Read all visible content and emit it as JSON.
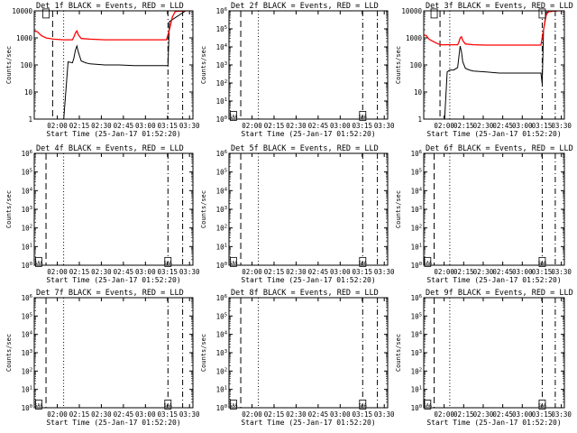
{
  "figure": {
    "xlabel": "Start Time (25-Jan-17 01:52:20)",
    "ylabel": "Counts/sec",
    "xticks": [
      "02:00",
      "02:15",
      "02:30",
      "02:45",
      "03:00",
      "03:15",
      "03:30"
    ],
    "colors": {
      "events": "#000000",
      "lld": "#ff0000",
      "axes": "#000000"
    }
  },
  "chart_data": [
    {
      "type": "line",
      "title": "Det 1f BLACK = Events, RED = LLD",
      "xlim_minutes_after_start": [
        -8,
        100
      ],
      "yscale": "log",
      "ylim": [
        1,
        10000
      ],
      "yticks": [
        "1",
        "10",
        "100",
        "1000",
        "10000"
      ],
      "vlines": [
        {
          "minutes": 4.5,
          "style": "dashed"
        },
        {
          "minutes": 12,
          "style": "dotted"
        },
        {
          "minutes": 83,
          "style": "dashdot"
        },
        {
          "minutes": 93,
          "style": "dashdot"
        }
      ],
      "box_markers": [
        {
          "minutes": 0,
          "y": 8000,
          "label": ""
        }
      ],
      "series": [
        {
          "role": "events",
          "x": [
            -8,
            12,
            15,
            18,
            19,
            20,
            21,
            22,
            24,
            27,
            30,
            40,
            50,
            60,
            70,
            80,
            83,
            84,
            95,
            100
          ],
          "y": [
            0.9,
            0.9,
            130,
            120,
            180,
            350,
            500,
            300,
            140,
            120,
            110,
            100,
            100,
            95,
            95,
            95,
            95,
            4000,
            10000,
            10000
          ]
        },
        {
          "role": "lld",
          "x": [
            -8,
            -6,
            -5,
            -3,
            0,
            5,
            12,
            18,
            19,
            20,
            21,
            22,
            24,
            30,
            40,
            50,
            60,
            70,
            80,
            82,
            84,
            86,
            88,
            95,
            100
          ],
          "y": [
            1800,
            1700,
            1500,
            1200,
            1000,
            900,
            850,
            850,
            1100,
            1500,
            1800,
            1300,
            950,
            900,
            850,
            850,
            850,
            850,
            850,
            850,
            2000,
            6000,
            9500,
            10000,
            10000
          ]
        }
      ]
    },
    {
      "type": "line",
      "title": "Det 2f BLACK = Events, RED = LLD",
      "xlim_minutes_after_start": [
        -8,
        100
      ],
      "yscale": "log",
      "ylim": [
        1,
        1000000
      ],
      "yticks": [
        "10^0",
        "10^1",
        "10^2",
        "10^3",
        "10^4",
        "10^5",
        "10^6"
      ],
      "vlines": [
        {
          "minutes": 0,
          "style": "dashed"
        },
        {
          "minutes": 12,
          "style": "dotted"
        },
        {
          "minutes": 83,
          "style": "dashdot"
        },
        {
          "minutes": 93,
          "style": "dashdot"
        }
      ],
      "box_markers": [
        {
          "minutes": -5,
          "y": 1.5,
          "label": "SAA"
        },
        {
          "minutes": 83,
          "y": 1.5,
          "label": "SAA"
        }
      ],
      "series": []
    },
    {
      "type": "line",
      "title": "Det 3f BLACK = Events, RED = LLD",
      "xlim_minutes_after_start": [
        -8,
        100
      ],
      "yscale": "log",
      "ylim": [
        1,
        10000
      ],
      "yticks": [
        "1",
        "10",
        "100",
        "1000",
        "10000"
      ],
      "vlines": [
        {
          "minutes": 4.5,
          "style": "dashed"
        },
        {
          "minutes": 12,
          "style": "dotted"
        },
        {
          "minutes": 83,
          "style": "dashdot"
        },
        {
          "minutes": 93,
          "style": "dashdot"
        }
      ],
      "box_markers": [
        {
          "minutes": 0,
          "y": 8000,
          "label": ""
        },
        {
          "minutes": 83,
          "y": 8000,
          "label": ""
        }
      ],
      "series": [
        {
          "role": "events",
          "x": [
            -8,
            8,
            10,
            12,
            15,
            18,
            19,
            20,
            21,
            22,
            24,
            27,
            30,
            40,
            50,
            60,
            70,
            80,
            82,
            83,
            84,
            86,
            95,
            100
          ],
          "y": [
            0.9,
            0.9,
            55,
            65,
            65,
            80,
            200,
            500,
            300,
            130,
            75,
            65,
            60,
            55,
            50,
            50,
            50,
            50,
            50,
            20,
            2000,
            9000,
            10000,
            10000
          ]
        },
        {
          "role": "lld",
          "x": [
            -8,
            -6,
            -4,
            0,
            3,
            5,
            8,
            12,
            18,
            19,
            20,
            21,
            22,
            24,
            30,
            40,
            50,
            60,
            70,
            80,
            82,
            84,
            86,
            88,
            95,
            100
          ],
          "y": [
            1300,
            1200,
            900,
            700,
            600,
            560,
            560,
            560,
            560,
            700,
            1000,
            1100,
            800,
            600,
            560,
            540,
            540,
            540,
            540,
            540,
            540,
            2000,
            7000,
            9500,
            10000,
            10000
          ]
        }
      ]
    },
    {
      "type": "line",
      "title": "Det 4f BLACK = Events, RED = LLD",
      "xlim_minutes_after_start": [
        -8,
        100
      ],
      "yscale": "log",
      "ylim": [
        1,
        1000000
      ],
      "yticks": [
        "10^0",
        "10^1",
        "10^2",
        "10^3",
        "10^4",
        "10^5",
        "10^6"
      ],
      "vlines": [
        {
          "minutes": 0,
          "style": "dashed"
        },
        {
          "minutes": 12,
          "style": "dotted"
        },
        {
          "minutes": 83,
          "style": "dashdot"
        },
        {
          "minutes": 93,
          "style": "dashdot"
        }
      ],
      "box_markers": [
        {
          "minutes": -5,
          "y": 1.5,
          "label": "SAA"
        },
        {
          "minutes": 83,
          "y": 1.5,
          "label": "SAA"
        }
      ],
      "series": []
    },
    {
      "type": "line",
      "title": "Det 5f BLACK = Events, RED = LLD",
      "xlim_minutes_after_start": [
        -8,
        100
      ],
      "yscale": "log",
      "ylim": [
        1,
        1000000
      ],
      "yticks": [
        "10^0",
        "10^1",
        "10^2",
        "10^3",
        "10^4",
        "10^5",
        "10^6"
      ],
      "vlines": [
        {
          "minutes": 0,
          "style": "dashed"
        },
        {
          "minutes": 12,
          "style": "dotted"
        },
        {
          "minutes": 83,
          "style": "dashdot"
        },
        {
          "minutes": 93,
          "style": "dashdot"
        }
      ],
      "box_markers": [
        {
          "minutes": -5,
          "y": 1.5,
          "label": "SAA"
        },
        {
          "minutes": 83,
          "y": 1.5,
          "label": "SAA"
        }
      ],
      "series": []
    },
    {
      "type": "line",
      "title": "Det 6f BLACK = Events, RED = LLD",
      "xlim_minutes_after_start": [
        -8,
        100
      ],
      "yscale": "log",
      "ylim": [
        1,
        1000000
      ],
      "yticks": [
        "10^0",
        "10^1",
        "10^2",
        "10^3",
        "10^4",
        "10^5",
        "10^6"
      ],
      "vlines": [
        {
          "minutes": 0,
          "style": "dashed"
        },
        {
          "minutes": 12,
          "style": "dotted"
        },
        {
          "minutes": 83,
          "style": "dashdot"
        },
        {
          "minutes": 93,
          "style": "dashdot"
        }
      ],
      "box_markers": [
        {
          "minutes": -5,
          "y": 1.5,
          "label": "SAA"
        },
        {
          "minutes": 83,
          "y": 1.5,
          "label": "SAA"
        }
      ],
      "series": []
    },
    {
      "type": "line",
      "title": "Det 7f BLACK = Events, RED = LLD",
      "xlim_minutes_after_start": [
        -8,
        100
      ],
      "yscale": "log",
      "ylim": [
        1,
        1000000
      ],
      "yticks": [
        "10^0",
        "10^1",
        "10^2",
        "10^3",
        "10^4",
        "10^5",
        "10^6"
      ],
      "vlines": [
        {
          "minutes": 0,
          "style": "dashed"
        },
        {
          "minutes": 12,
          "style": "dotted"
        },
        {
          "minutes": 83,
          "style": "dashdot"
        },
        {
          "minutes": 93,
          "style": "dashdot"
        }
      ],
      "box_markers": [
        {
          "minutes": -5,
          "y": 1.5,
          "label": "SAA"
        },
        {
          "minutes": 83,
          "y": 1.5,
          "label": "SAA"
        }
      ],
      "series": []
    },
    {
      "type": "line",
      "title": "Det 8f BLACK = Events, RED = LLD",
      "xlim_minutes_after_start": [
        -8,
        100
      ],
      "yscale": "log",
      "ylim": [
        1,
        1000000
      ],
      "yticks": [
        "10^0",
        "10^1",
        "10^2",
        "10^3",
        "10^4",
        "10^5",
        "10^6"
      ],
      "vlines": [
        {
          "minutes": 0,
          "style": "dashed"
        },
        {
          "minutes": 12,
          "style": "dotted"
        },
        {
          "minutes": 83,
          "style": "dashdot"
        },
        {
          "minutes": 93,
          "style": "dashdot"
        }
      ],
      "box_markers": [
        {
          "minutes": -5,
          "y": 1.5,
          "label": "SAA"
        },
        {
          "minutes": 83,
          "y": 1.5,
          "label": "SAA"
        }
      ],
      "series": []
    },
    {
      "type": "line",
      "title": "Det 9f BLACK = Events, RED = LLD",
      "xlim_minutes_after_start": [
        -8,
        100
      ],
      "yscale": "log",
      "ylim": [
        1,
        1000000
      ],
      "yticks": [
        "10^0",
        "10^1",
        "10^2",
        "10^3",
        "10^4",
        "10^5",
        "10^6"
      ],
      "vlines": [
        {
          "minutes": 0,
          "style": "dashed"
        },
        {
          "minutes": 12,
          "style": "dotted"
        },
        {
          "minutes": 83,
          "style": "dashdot"
        },
        {
          "minutes": 93,
          "style": "dashdot"
        }
      ],
      "box_markers": [
        {
          "minutes": -5,
          "y": 1.5,
          "label": "SAA"
        },
        {
          "minutes": 83,
          "y": 1.5,
          "label": "SAA"
        }
      ],
      "series": []
    }
  ]
}
